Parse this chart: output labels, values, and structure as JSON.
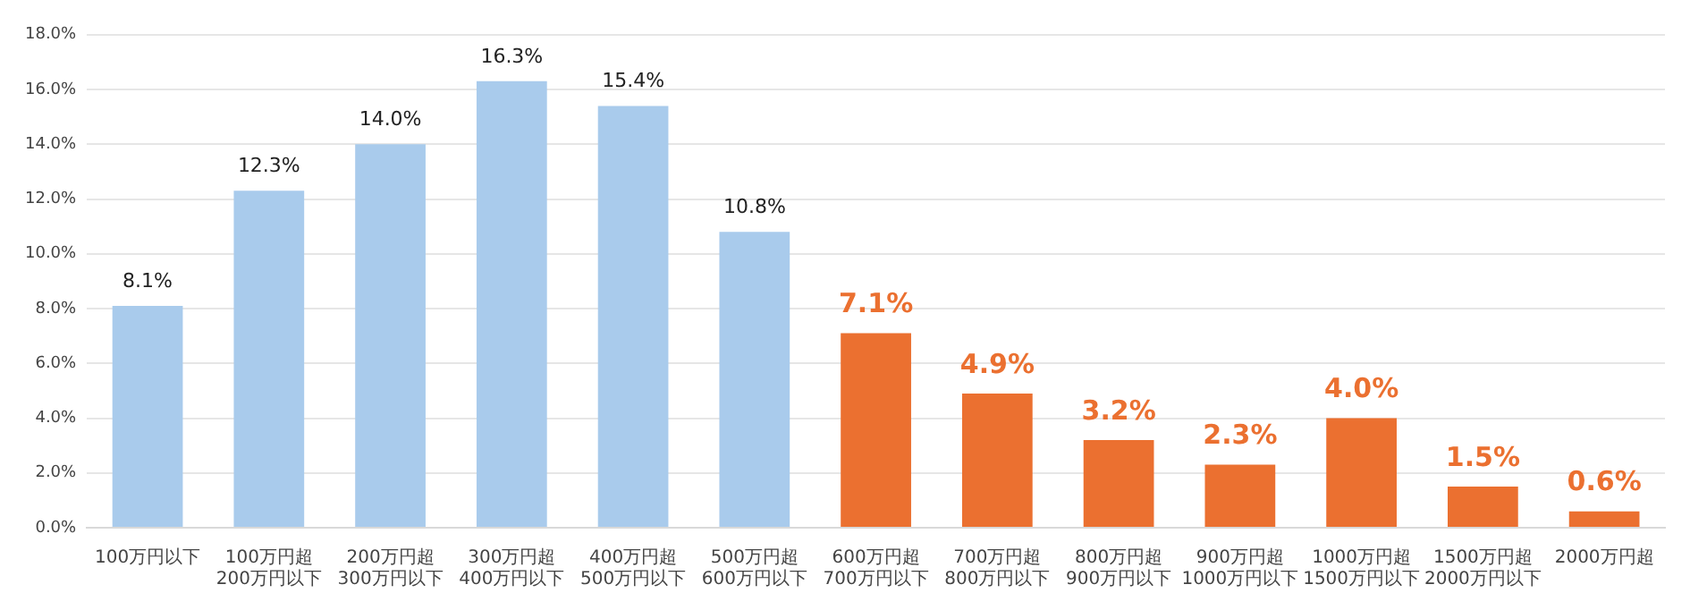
{
  "chart_data": {
    "type": "bar",
    "categories": [
      "100万円以下",
      "100万円超\n200万円以下",
      "200万円超\n300万円以下",
      "300万円超\n400万円以下",
      "400万円超\n500万円以下",
      "500万円超\n600万円以下",
      "600万円超\n700万円以下",
      "700万円超\n800万円以下",
      "800万円超\n900万円以下",
      "900万円超\n1000万円以下",
      "1000万円超\n1500万円以下",
      "1500万円超\n2000万円以下",
      "2000万円超"
    ],
    "values": [
      8.1,
      12.3,
      14.0,
      16.3,
      15.4,
      10.8,
      7.1,
      4.9,
      3.2,
      2.3,
      4.0,
      1.5,
      0.6
    ],
    "colors": [
      "#a9cbec",
      "#a9cbec",
      "#a9cbec",
      "#a9cbec",
      "#a9cbec",
      "#a9cbec",
      "#eb7030",
      "#eb7030",
      "#eb7030",
      "#eb7030",
      "#eb7030",
      "#eb7030",
      "#eb7030"
    ],
    "value_labels": [
      "8.1%",
      "12.3%",
      "14.0%",
      "16.3%",
      "15.4%",
      "10.8%",
      "7.1%",
      "4.9%",
      "3.2%",
      "2.3%",
      "4.0%",
      "1.5%",
      "0.6%"
    ],
    "ylim": [
      0,
      18
    ],
    "yticks": [
      {
        "value": 0,
        "label": "0.0%"
      },
      {
        "value": 2,
        "label": "2.0%"
      },
      {
        "value": 4,
        "label": "4.0%"
      },
      {
        "value": 6,
        "label": "6.0%"
      },
      {
        "value": 8,
        "label": "8.0%"
      },
      {
        "value": 10,
        "label": "10.0%"
      },
      {
        "value": 12,
        "label": "12.0%"
      },
      {
        "value": 14,
        "label": "14.0%"
      },
      {
        "value": 16,
        "label": "16.0%"
      },
      {
        "value": 18,
        "label": "18.0%"
      }
    ],
    "grid": "y"
  }
}
